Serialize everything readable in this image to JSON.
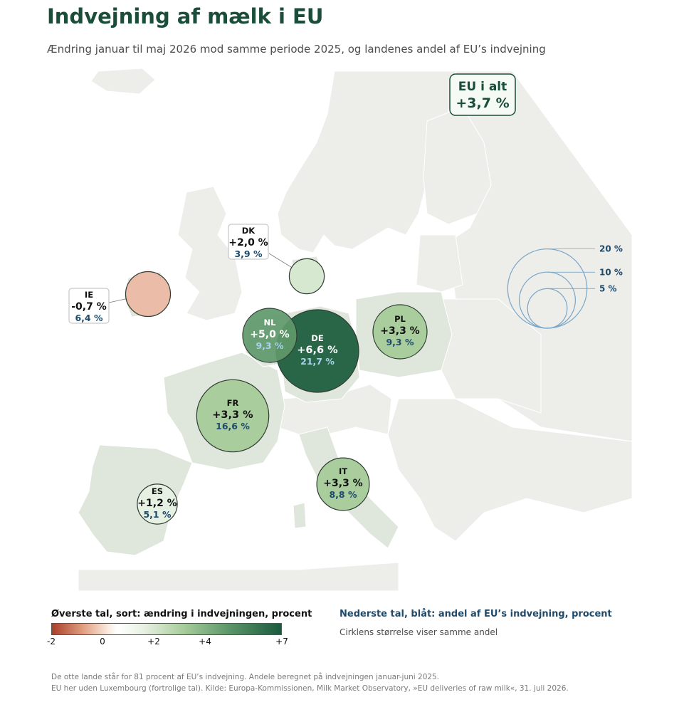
{
  "title": "Indvejning af mælk i EU",
  "subtitle": "Ændring januar til maj 2026 mod samme periode 2025, og landenes andel af EU’s indvejning",
  "eu_total": {
    "label": "EU i alt",
    "value": "+3,7 %"
  },
  "countries": [
    {
      "code": "DE",
      "change": "+6,6 %",
      "share": "21,7 %",
      "change_value": 6.6,
      "share_value": 21.7
    },
    {
      "code": "FR",
      "change": "+3,3 %",
      "share": "16,6 %",
      "change_value": 3.3,
      "share_value": 16.6
    },
    {
      "code": "NL",
      "change": "+5,0 %",
      "share": "9,3 %",
      "change_value": 5.0,
      "share_value": 9.3
    },
    {
      "code": "PL",
      "change": "+3,3 %",
      "share": "9,3 %",
      "change_value": 3.3,
      "share_value": 9.3
    },
    {
      "code": "IT",
      "change": "+3,3 %",
      "share": "8,8 %",
      "change_value": 3.3,
      "share_value": 8.8
    },
    {
      "code": "IE",
      "change": "-0,7 %",
      "share": "6,4 %",
      "change_value": -0.7,
      "share_value": 6.4
    },
    {
      "code": "ES",
      "change": "+1,2 %",
      "share": "5,1 %",
      "change_value": 1.2,
      "share_value": 5.1
    },
    {
      "code": "DK",
      "change": "+2,0 %",
      "share": "3,9 %",
      "change_value": 2.0,
      "share_value": 3.9
    }
  ],
  "size_legend": [
    {
      "label": "20 %",
      "value": 20
    },
    {
      "label": "10 %",
      "value": 10
    },
    {
      "label": "5 %",
      "value": 5
    }
  ],
  "color_legend": {
    "title": "Øverste tal, sort: ændring i indvejningen, procent",
    "ticks": [
      {
        "label": "-2",
        "value": -2
      },
      {
        "label": "0",
        "value": 0
      },
      {
        "label": "+2",
        "value": 2
      },
      {
        "label": "+4",
        "value": 4
      },
      {
        "label": "+7",
        "value": 7
      }
    ],
    "range": [
      -2,
      7
    ]
  },
  "share_legend": {
    "title": "Nederste tal, blåt: andel af EU’s indvejning, procent",
    "subtitle": "Cirklens størrelse viser samme andel"
  },
  "footer": {
    "line1": "De otte lande står for 81 procent af EU’s indvejning. Andele beregnet på indvejningen januar-juni 2025.",
    "line2": "EU her uden Luxembourg (fortrolige tal). Kilde: Europa-Kommissionen, Milk Market Observatory, »EU deliveries of raw milk«, 31. juli 2026."
  },
  "colors": {
    "title": "#1a4d3a",
    "share_dark": "#1f4a6b",
    "share_light": "#a9d2ee",
    "size_legend": "#7ba6c6"
  }
}
